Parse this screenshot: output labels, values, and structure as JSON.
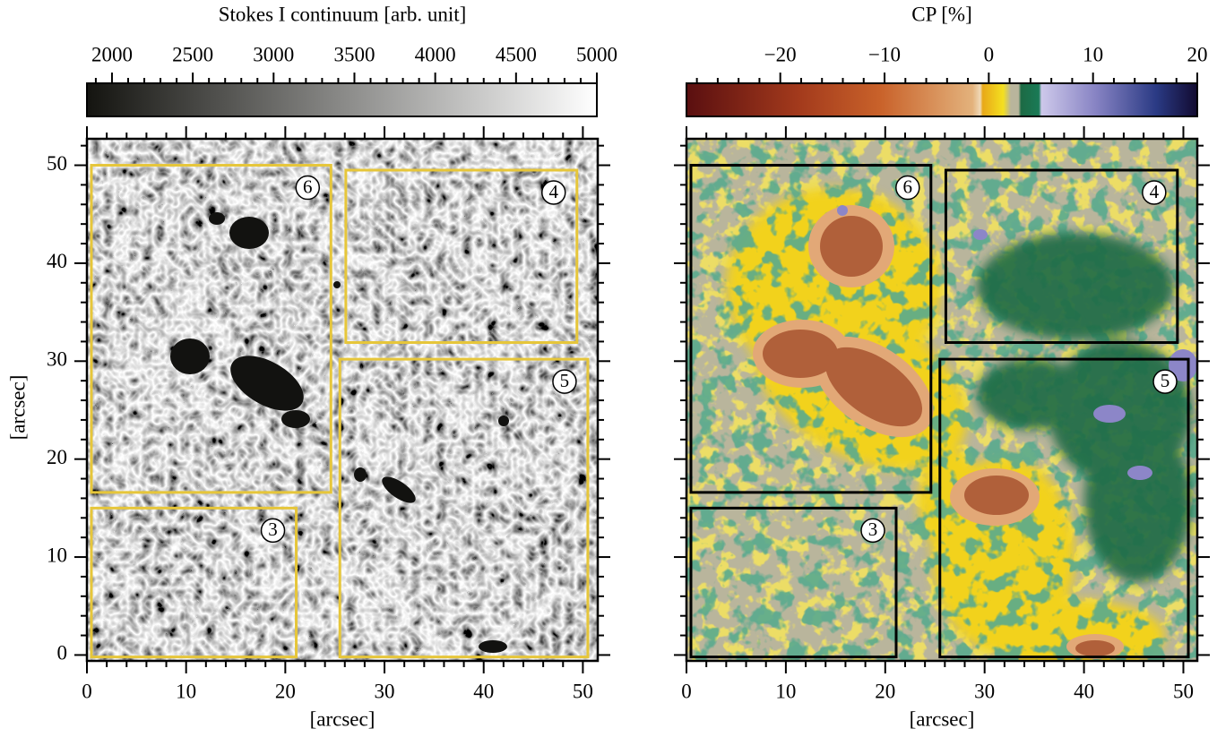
{
  "chart_data": [
    {
      "type": "image",
      "colorbar": {
        "label": "Stokes I continuum [arb. unit]",
        "lim": [
          1845,
          5000
        ],
        "ticks": [
          2000,
          2500,
          3000,
          3500,
          4000,
          4500,
          5000
        ],
        "minor_ticks": [
          1900,
          2100,
          2200,
          2300,
          2400,
          2600,
          2700,
          2800,
          2900,
          3100,
          3200,
          3300,
          3400,
          3600,
          3700,
          3800,
          3900,
          4100,
          4200,
          4300,
          4400,
          4600,
          4700,
          4800,
          4900
        ]
      },
      "xlabel": "[arcsec]",
      "ylabel": "[arcsec]",
      "xlim": [
        0,
        51.5
      ],
      "ylim": [
        -0.6,
        52.7
      ],
      "xticks": [
        0,
        10,
        20,
        30,
        40,
        50
      ],
      "yticks": [
        0,
        10,
        20,
        30,
        40,
        50
      ],
      "xminor": [
        2,
        4,
        6,
        8,
        12,
        14,
        16,
        18,
        22,
        24,
        26,
        28,
        32,
        34,
        36,
        38,
        42,
        44,
        46,
        48
      ],
      "yminor": [
        2,
        4,
        6,
        8,
        12,
        14,
        16,
        18,
        22,
        24,
        26,
        28,
        32,
        34,
        36,
        38,
        42,
        44,
        46,
        48,
        52
      ],
      "box_color": "#e6c63a",
      "regions": [
        {
          "label": "6",
          "x": [
            0.45,
            24.6
          ],
          "y": [
            16.6,
            50
          ]
        },
        {
          "label": "4",
          "x": [
            26.1,
            49.4
          ],
          "y": [
            31.9,
            49.5
          ]
        },
        {
          "label": "5",
          "x": [
            25.5,
            50.5
          ],
          "y": [
            -0.2,
            30.2
          ]
        },
        {
          "label": "3",
          "x": [
            0.45,
            21.1
          ],
          "y": [
            -0.2,
            15.0
          ]
        }
      ]
    },
    {
      "type": "image",
      "colorbar": {
        "label": "CP [%]",
        "lim": [
          -29,
          20
        ],
        "ticks": [
          {
            "value": -20,
            "label": "−20"
          },
          {
            "value": -10,
            "label": "−10"
          },
          0,
          10,
          20
        ],
        "minor_ticks": [
          -28,
          -26,
          -24,
          -22,
          -18,
          -16,
          -14,
          -12,
          -8,
          -6,
          -4,
          -2,
          2,
          4,
          6,
          8,
          12,
          14,
          16,
          18
        ]
      },
      "xlabel": "[arcsec]",
      "xlim": [
        0,
        51.4
      ],
      "ylim": [
        -0.6,
        52.7
      ],
      "xticks": [
        0,
        10,
        20,
        30,
        40,
        50
      ],
      "yticks": [
        0,
        10,
        20,
        30,
        40,
        50
      ],
      "xminor": [
        2,
        4,
        6,
        8,
        12,
        14,
        16,
        18,
        22,
        24,
        26,
        28,
        32,
        34,
        36,
        38,
        42,
        44,
        46,
        48
      ],
      "yminor": [
        2,
        4,
        6,
        8,
        12,
        14,
        16,
        18,
        22,
        24,
        26,
        28,
        32,
        34,
        36,
        38,
        42,
        44,
        46,
        48,
        52
      ],
      "box_color": "#000000",
      "regions": [
        {
          "label": "6",
          "x": [
            0.45,
            24.6
          ],
          "y": [
            16.6,
            50
          ]
        },
        {
          "label": "4",
          "x": [
            26.1,
            49.4
          ],
          "y": [
            31.9,
            49.5
          ]
        },
        {
          "label": "5",
          "x": [
            25.5,
            50.5
          ],
          "y": [
            -0.2,
            30.2
          ]
        },
        {
          "label": "3",
          "x": [
            0.45,
            21.1
          ],
          "y": [
            -0.2,
            15.0
          ]
        }
      ]
    }
  ]
}
